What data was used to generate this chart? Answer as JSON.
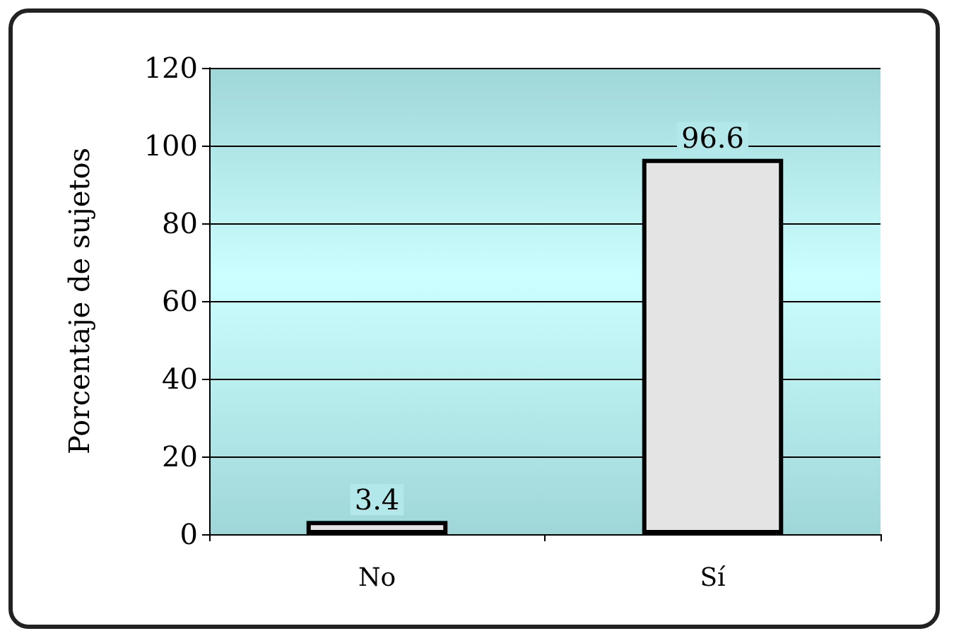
{
  "chart_data": {
    "type": "bar",
    "ylabel": "Porcentaje de sujetos",
    "categories": [
      "No",
      "Sí"
    ],
    "values": [
      3.4,
      96.6
    ],
    "color": "#e4e4e4",
    "ylim": [
      0,
      120
    ],
    "yticks": [
      0,
      20,
      40,
      60,
      80,
      100,
      120
    ],
    "grid": "y",
    "data_labels": true
  }
}
